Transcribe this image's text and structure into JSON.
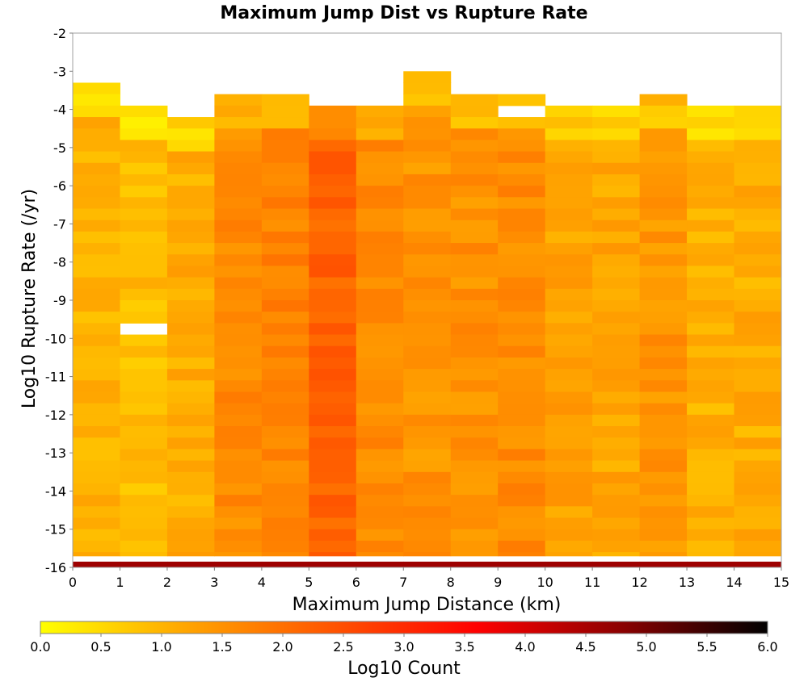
{
  "chart_data": {
    "type": "heatmap",
    "title": "Maximum Jump Dist vs Rupture Rate",
    "xlabel": "Maximum Jump Distance (km)",
    "ylabel": "Log10 Rupture Rate (/yr)",
    "colorbar_label": "Log10 Count",
    "xlim": [
      0,
      15
    ],
    "ylim": [
      -16,
      -2
    ],
    "x_ticks": [
      "0",
      "1",
      "2",
      "3",
      "4",
      "5",
      "6",
      "7",
      "8",
      "9",
      "10",
      "11",
      "12",
      "13",
      "14",
      "15"
    ],
    "y_ticks": [
      "-2",
      "-3",
      "-4",
      "-5",
      "-6",
      "-7",
      "-8",
      "-9",
      "-10",
      "-11",
      "-12",
      "-13",
      "-14",
      "-15",
      "-16"
    ],
    "colorbar_ticks": [
      "0.0",
      "0.5",
      "1.0",
      "1.5",
      "2.0",
      "2.5",
      "3.0",
      "3.5",
      "4.0",
      "4.5",
      "5.0",
      "5.5",
      "6.0"
    ],
    "colorbar_range": [
      0,
      6
    ],
    "colorscale": [
      "#ffff00",
      "#ffa500",
      "#ff5500",
      "#ff0000",
      "#8b0000",
      "#000000"
    ],
    "x_bins": [
      "0-1",
      "1-2",
      "2-3",
      "3-4",
      "4-5",
      "5-6",
      "6-7",
      "7-8",
      "8-9",
      "9-10",
      "10-11",
      "11-12",
      "12-13",
      "13-14",
      "14-15"
    ],
    "y_bin_width": 0.3,
    "column_top_log_rate": [
      -3.3,
      -3.9,
      -4.2,
      -3.6,
      -3.6,
      -3.9,
      -3.9,
      -3.0,
      -3.6,
      -3.6,
      -3.9,
      -3.9,
      -3.6,
      -3.9,
      -3.9
    ],
    "column_mean_log_count": [
      1.0,
      0.9,
      1.1,
      1.6,
      1.7,
      2.2,
      1.6,
      1.45,
      1.5,
      1.6,
      1.25,
      1.2,
      1.45,
      1.05,
      1.1
    ],
    "empty_cells": [
      [
        1,
        -9.75
      ],
      [
        9,
        -4.05
      ]
    ],
    "bottom_row_log_rate": -16.0,
    "bottom_row_log_count": 4.6
  }
}
